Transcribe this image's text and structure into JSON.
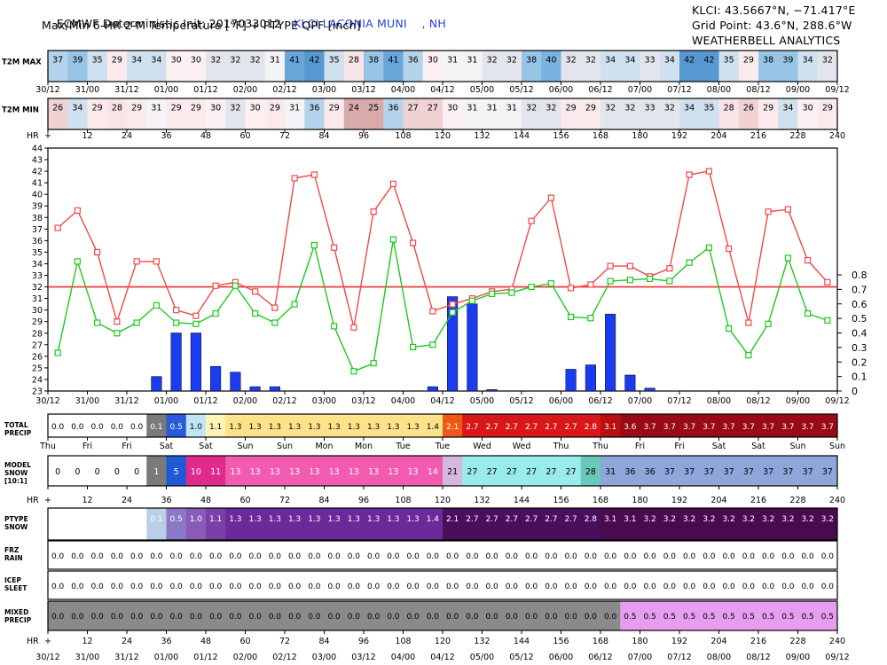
{
  "header": {
    "init_line": "ECMWF Deterministic Init: 2017033012",
    "station": "KLCI LACONIA MUNI    , NH",
    "subtitle": "Max/Min 6-HR 2-M Temperature [°F] + PTYPE QPF [inch]",
    "station_coords": "KLCI: 43.5667°N, −71.417°E",
    "grid_point": "Grid Point: 43.6°N, 288.6°W",
    "credit": "WEATHERBELL ANALYTICS"
  },
  "colors": {
    "max_line": "#f04848",
    "min_line": "#20c820",
    "freezing_line": "#f03030",
    "qpf_bar": "#1a3cf0",
    "station_text": "#2840e0"
  },
  "chart_data": {
    "type": "line",
    "forecast_hours": [
      6,
      12,
      18,
      24,
      30,
      36,
      42,
      48,
      54,
      60,
      66,
      72,
      78,
      84,
      90,
      96,
      102,
      108,
      114,
      120,
      126,
      132,
      138,
      144,
      150,
      156,
      162,
      168,
      174,
      180,
      186,
      192,
      198,
      204,
      210,
      216,
      222,
      228,
      234,
      240
    ],
    "hr_ticks": [
      "+",
      "12",
      "24",
      "36",
      "48",
      "60",
      "72",
      "84",
      "96",
      "108",
      "120",
      "132",
      "144",
      "156",
      "168",
      "180",
      "192",
      "204",
      "216",
      "228",
      "240"
    ],
    "date_ticks": [
      "30/12",
      "31/00",
      "31/12",
      "01/00",
      "01/12",
      "02/00",
      "02/12",
      "03/00",
      "03/12",
      "04/00",
      "04/12",
      "05/00",
      "05/12",
      "06/00",
      "06/12",
      "07/00",
      "07/12",
      "08/00",
      "08/12",
      "09/00",
      "09/12"
    ],
    "day_ticks": [
      "Thu",
      "Fri",
      "Fri",
      "Sat",
      "Sat",
      "Sun",
      "Sun",
      "Mon",
      "Mon",
      "Tue",
      "Tue",
      "Wed",
      "Wed",
      "Thu",
      "Thu",
      "Fri",
      "Fri",
      "Sat",
      "Sat",
      "Sun",
      "Sun"
    ],
    "series": [
      {
        "name": "T2M MAX",
        "values": [
          37,
          39,
          35,
          29,
          34,
          34,
          30,
          30,
          32,
          32,
          32,
          31,
          41,
          42,
          35,
          28,
          38,
          41,
          36,
          30,
          31,
          31,
          32,
          32,
          38,
          40,
          32,
          32,
          34,
          34,
          33,
          34,
          42,
          42,
          35,
          29,
          38,
          39,
          34,
          32
        ]
      },
      {
        "name": "T2M MIN",
        "values": [
          26,
          34,
          29,
          28,
          29,
          31,
          29,
          29,
          30,
          32,
          30,
          29,
          31,
          36,
          29,
          24,
          25,
          36,
          27,
          27,
          30,
          31,
          31,
          31,
          32,
          32,
          29,
          29,
          32,
          32,
          33,
          32,
          34,
          35,
          28,
          26,
          29,
          34,
          30,
          29
        ]
      }
    ],
    "line_max_precise": [
      37.1,
      38.6,
      35.0,
      29.0,
      34.2,
      34.2,
      30.0,
      29.5,
      32.1,
      32.4,
      31.6,
      30.2,
      41.4,
      41.7,
      35.4,
      28.5,
      38.5,
      40.9,
      35.8,
      29.9,
      30.5,
      31.0,
      31.6,
      31.8,
      37.7,
      39.7,
      31.9,
      32.2,
      33.8,
      33.8,
      32.9,
      33.6,
      41.7,
      42.0,
      35.3,
      28.9,
      38.5,
      38.7,
      34.3,
      32.4
    ],
    "line_min_precise": [
      26.3,
      34.2,
      28.9,
      28.0,
      28.9,
      30.4,
      28.9,
      28.8,
      29.7,
      32.1,
      29.7,
      28.9,
      30.5,
      35.6,
      28.6,
      24.7,
      25.4,
      36.1,
      26.8,
      27.0,
      29.8,
      30.8,
      31.4,
      31.5,
      32.0,
      32.3,
      29.4,
      29.3,
      32.5,
      32.6,
      32.7,
      32.5,
      34.1,
      35.4,
      28.4,
      26.1,
      28.8,
      34.5,
      29.7,
      29.1
    ],
    "qpf_6hr": [
      0,
      0,
      0,
      0,
      0,
      0.1,
      0.4,
      0.4,
      0.17,
      0.13,
      0.03,
      0.03,
      0,
      0,
      0,
      0,
      0,
      0,
      0,
      0.03,
      0.65,
      0.6,
      0.01,
      0,
      0,
      0,
      0.15,
      0.18,
      0.53,
      0.11,
      0.02,
      0,
      0,
      0,
      0,
      0,
      0,
      0,
      0,
      0
    ],
    "temp_axis": {
      "min": 23,
      "max": 44,
      "ticks": [
        23,
        24,
        25,
        26,
        27,
        28,
        29,
        30,
        31,
        32,
        33,
        34,
        35,
        36,
        37,
        38,
        39,
        40,
        41,
        42,
        43,
        44
      ]
    },
    "precip_axis": {
      "min": 0,
      "max": 0.8,
      "ticks": [
        "0",
        "0.1",
        "0.2",
        "0.3",
        "0.4",
        "0.5",
        "0.6",
        "0.7",
        "0.8"
      ]
    },
    "freezing_f": 32,
    "total_precip": [
      "0.0",
      "0.0",
      "0.0",
      "0.0",
      "0.0",
      "0.1",
      "0.5",
      "1.0",
      "1.1",
      "1.3",
      "1.3",
      "1.3",
      "1.3",
      "1.3",
      "1.3",
      "1.3",
      "1.3",
      "1.3",
      "1.3",
      "1.4",
      "2.1",
      "2.7",
      "2.7",
      "2.7",
      "2.7",
      "2.7",
      "2.7",
      "2.8",
      "3.1",
      "3.6",
      "3.7",
      "3.7",
      "3.7",
      "3.7",
      "3.7",
      "3.7",
      "3.7",
      "3.7",
      "3.7",
      "3.7"
    ],
    "model_snow": [
      "0",
      "0",
      "0",
      "0",
      "0",
      "1",
      "5",
      "10",
      "11",
      "13",
      "13",
      "13",
      "13",
      "13",
      "13",
      "13",
      "13",
      "13",
      "13",
      "14",
      "21",
      "27",
      "27",
      "27",
      "27",
      "27",
      "27",
      "28",
      "31",
      "36",
      "36",
      "37",
      "37",
      "37",
      "37",
      "37",
      "37",
      "37",
      "37",
      "37"
    ],
    "ptype_snow": [
      "",
      "",
      "",
      "",
      "",
      "0.1",
      "0.5",
      "1.0",
      "1.1",
      "1.3",
      "1.3",
      "1.3",
      "1.3",
      "1.3",
      "1.3",
      "1.3",
      "1.3",
      "1.3",
      "1.3",
      "1.4",
      "2.1",
      "2.7",
      "2.7",
      "2.7",
      "2.7",
      "2.7",
      "2.7",
      "2.8",
      "3.1",
      "3.1",
      "3.2",
      "3.2",
      "3.2",
      "3.2",
      "3.2",
      "3.2",
      "3.2",
      "3.2",
      "3.2",
      "3.2"
    ],
    "frz_rain": [
      "0.0",
      "0.0",
      "0.0",
      "0.0",
      "0.0",
      "0.0",
      "0.0",
      "0.0",
      "0.0",
      "0.0",
      "0.0",
      "0.0",
      "0.0",
      "0.0",
      "0.0",
      "0.0",
      "0.0",
      "0.0",
      "0.0",
      "0.0",
      "0.0",
      "0.0",
      "0.0",
      "0.0",
      "0.0",
      "0.0",
      "0.0",
      "0.0",
      "0.0",
      "0.0",
      "0.0",
      "0.0",
      "0.0",
      "0.0",
      "0.0",
      "0.0",
      "0.0",
      "0.0",
      "0.0",
      "0.0"
    ],
    "icep_sleet": [
      "0.0",
      "0.0",
      "0.0",
      "0.0",
      "0.0",
      "0.0",
      "0.0",
      "0.0",
      "0.0",
      "0.0",
      "0.0",
      "0.0",
      "0.0",
      "0.0",
      "0.0",
      "0.0",
      "0.0",
      "0.0",
      "0.0",
      "0.0",
      "0.0",
      "0.0",
      "0.0",
      "0.0",
      "0.0",
      "0.0",
      "0.0",
      "0.0",
      "0.0",
      "0.0",
      "0.0",
      "0.0",
      "0.0",
      "0.0",
      "0.0",
      "0.0",
      "0.0",
      "0.0",
      "0.0",
      "0.0"
    ],
    "mixed_precip": [
      "0.0",
      "0.0",
      "0.0",
      "0.0",
      "0.0",
      "0.0",
      "0.0",
      "0.0",
      "0.0",
      "0.0",
      "0.0",
      "0.0",
      "0.0",
      "0.0",
      "0.0",
      "0.0",
      "0.0",
      "0.0",
      "0.0",
      "0.0",
      "0.0",
      "0.0",
      "0.0",
      "0.0",
      "0.0",
      "0.0",
      "0.0",
      "0.0",
      "0.0",
      "0.5",
      "0.5",
      "0.5",
      "0.5",
      "0.5",
      "0.5",
      "0.5",
      "0.5",
      "0.5",
      "0.5",
      "0.5"
    ],
    "row_labels": {
      "t2m_max": "T2M MAX",
      "t2m_min": "T2M MIN",
      "hr": "HR",
      "total_precip": [
        "TOTAL",
        "PRECIP"
      ],
      "model_snow": [
        "MODEL",
        "SNOW",
        "[10:1]"
      ],
      "ptype_snow": [
        "PTYPE",
        "SNOW"
      ],
      "frz_rain": [
        "FRZ",
        "RAIN"
      ],
      "icep_sleet": [
        "ICEP",
        "SLEET"
      ],
      "mixed_precip": [
        "MIXED",
        "PRECIP"
      ]
    }
  }
}
